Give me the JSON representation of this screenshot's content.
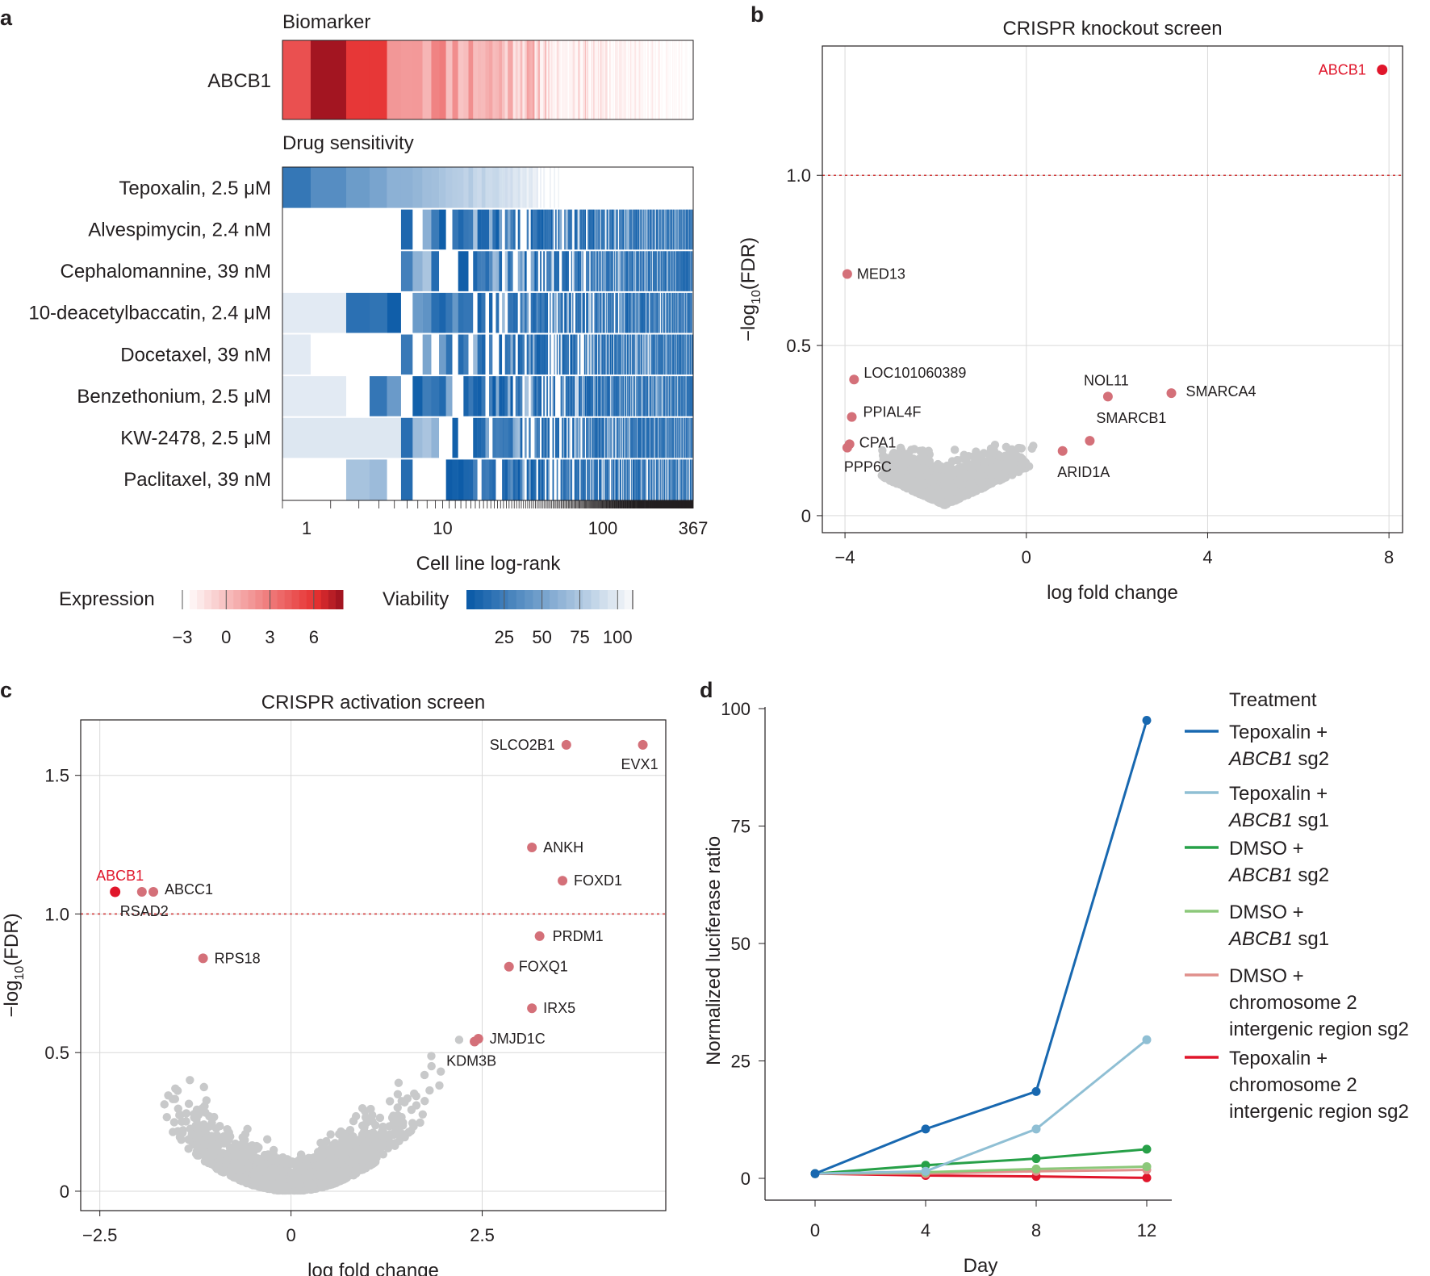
{
  "colors": {
    "red_highlight": "#e0162b",
    "pink_gene": "#d47079",
    "grey_point": "#c8c9ca",
    "grid": "#d9d9d9",
    "threshold": "#d03a3a",
    "blue": "#1868b0",
    "lightblue": "#8fbfd4",
    "green": "#27a048",
    "lightgreen": "#8cc87a",
    "salmon": "#e0908c",
    "red": "#e0162b"
  },
  "chart_data": [
    {
      "panel": "a",
      "type": "heatmap",
      "biomarker_title": "Biomarker",
      "biomarker_row": "ABCB1",
      "drug_title": "Drug sensitivity",
      "rows": [
        "Tepoxalin, 2.5 μM",
        "Alvespimycin, 2.4 nM",
        "Cephalomannine, 39 nM",
        "10-deacetylbaccatin, 2.4 μM",
        "Docetaxel, 39 nM",
        "Benzethonium, 2.5 μM",
        "KW-2478, 2.5 μM",
        "Paclitaxel, 39 nM"
      ],
      "x_ticks": [
        {
          "value": 1,
          "label": "1"
        },
        {
          "value": 10,
          "label": "10"
        },
        {
          "value": 100,
          "label": "100"
        },
        {
          "value": 367,
          "label": "367"
        }
      ],
      "x_scale": "log",
      "xlim": [
        1,
        367
      ],
      "xlabel": "Cell line log-rank",
      "expression_legend": {
        "title": "Expression",
        "ticks": [
          "−3",
          "0",
          "3",
          "6"
        ],
        "range": [
          -3,
          8
        ]
      },
      "viability_legend": {
        "title": "Viability",
        "ticks": [
          "25",
          "50",
          "75",
          "100"
        ],
        "range": [
          0,
          110
        ]
      }
    },
    {
      "panel": "b",
      "type": "scatter",
      "title": "CRISPR knockout screen",
      "xlabel": "log fold change",
      "ylabel": "−log10(FDR)",
      "xlim": [
        -4.5,
        8.3
      ],
      "ylim": [
        -0.05,
        1.38
      ],
      "x_ticks": [
        {
          "value": -4,
          "label": "−4"
        },
        {
          "value": 0,
          "label": "0"
        },
        {
          "value": 4,
          "label": "4"
        },
        {
          "value": 8,
          "label": "8"
        }
      ],
      "y_ticks": [
        {
          "value": 0,
          "label": "0"
        },
        {
          "value": 0.5,
          "label": "0.5"
        },
        {
          "value": 1.0,
          "label": "1.0"
        }
      ],
      "threshold": 1.0,
      "highlight": [
        {
          "gene": "ABCB1",
          "x": 7.85,
          "y": 1.31
        }
      ],
      "labeled": [
        {
          "gene": "MED13",
          "x": -3.95,
          "y": 0.71
        },
        {
          "gene": "LOC101060389",
          "x": -3.8,
          "y": 0.4
        },
        {
          "gene": "PPIAL4F",
          "x": -3.85,
          "y": 0.29
        },
        {
          "gene": "CPA1",
          "x": -3.9,
          "y": 0.21
        },
        {
          "gene": "PPP6C",
          "x": -3.95,
          "y": 0.2
        },
        {
          "gene": "NOL11",
          "x": 1.8,
          "y": 0.35
        },
        {
          "gene": "SMARCA4",
          "x": 3.2,
          "y": 0.36
        },
        {
          "gene": "SMARCB1",
          "x": 1.4,
          "y": 0.22
        },
        {
          "gene": "ARID1A",
          "x": 0.8,
          "y": 0.19
        }
      ],
      "background_points_note": "thousands of genes clustered near x 0 to -3, y 0 to 0.25"
    },
    {
      "panel": "c",
      "type": "scatter",
      "title": "CRISPR activation screen",
      "xlabel": "log fold change",
      "ylabel": "−log10(FDR)",
      "xlim": [
        -2.75,
        4.9
      ],
      "ylim": [
        -0.07,
        1.7
      ],
      "x_ticks": [
        {
          "value": -2.5,
          "label": "−2.5"
        },
        {
          "value": 0,
          "label": "0"
        },
        {
          "value": 2.5,
          "label": "2.5"
        }
      ],
      "y_ticks": [
        {
          "value": 0,
          "label": "0"
        },
        {
          "value": 0.5,
          "label": "0.5"
        },
        {
          "value": 1.0,
          "label": "1.0"
        },
        {
          "value": 1.5,
          "label": "1.5"
        }
      ],
      "threshold": 1.0,
      "highlight": [
        {
          "gene": "ABCB1",
          "x": -2.3,
          "y": 1.08
        }
      ],
      "labeled": [
        {
          "gene": "RSAD2",
          "x": -1.95,
          "y": 1.08
        },
        {
          "gene": "ABCC1",
          "x": -1.8,
          "y": 1.08
        },
        {
          "gene": "RPS18",
          "x": -1.15,
          "y": 0.84
        },
        {
          "gene": "SLCO2B1",
          "x": 3.6,
          "y": 1.61
        },
        {
          "gene": "EVX1",
          "x": 4.6,
          "y": 1.61
        },
        {
          "gene": "ANKH",
          "x": 3.15,
          "y": 1.24
        },
        {
          "gene": "FOXD1",
          "x": 3.55,
          "y": 1.12
        },
        {
          "gene": "PRDM1",
          "x": 3.25,
          "y": 0.92
        },
        {
          "gene": "FOXQ1",
          "x": 2.85,
          "y": 0.81
        },
        {
          "gene": "IRX5",
          "x": 3.15,
          "y": 0.66
        },
        {
          "gene": "JMJD1C",
          "x": 2.45,
          "y": 0.55
        },
        {
          "gene": "KDM3B",
          "x": 2.4,
          "y": 0.54
        }
      ]
    },
    {
      "panel": "d",
      "type": "line",
      "xlabel": "Day",
      "ylabel": "Normalized luciferase ratio",
      "x": [
        0,
        4,
        8,
        12
      ],
      "xlim": [
        -1,
        13
      ],
      "ylim": [
        -4,
        103
      ],
      "x_ticks": [
        0,
        4,
        8,
        12
      ],
      "y_ticks": [
        0,
        25,
        50,
        75,
        100
      ],
      "legend_title": "Treatment",
      "series": [
        {
          "key": "tep_sg2",
          "lines": [
            {
              "t": "Tepoxalin +"
            },
            {
              "t": "ABCB1",
              "i": true,
              "s": " sg2"
            }
          ],
          "color": "#1868b0",
          "values": [
            1,
            10.5,
            18.5,
            97.5
          ]
        },
        {
          "key": "tep_sg1",
          "lines": [
            {
              "t": "Tepoxalin +"
            },
            {
              "t": "ABCB1",
              "i": true,
              "s": " sg1"
            }
          ],
          "color": "#8fbfd4",
          "values": [
            1,
            1.5,
            10.5,
            29.5
          ]
        },
        {
          "key": "dmso_sg2",
          "lines": [
            {
              "t": "DMSO +"
            },
            {
              "t": "ABCB1",
              "i": true,
              "s": " sg2"
            }
          ],
          "color": "#27a048",
          "values": [
            1,
            2.8,
            4.2,
            6.2
          ]
        },
        {
          "key": "dmso_sg1",
          "lines": [
            {
              "t": "DMSO +"
            },
            {
              "t": "ABCB1",
              "i": true,
              "s": " sg1"
            }
          ],
          "color": "#8cc87a",
          "values": [
            1,
            1.3,
            2.0,
            2.5
          ]
        },
        {
          "key": "dmso_int",
          "lines": [
            {
              "t": "DMSO +"
            },
            {
              "t": "chromosome 2"
            },
            {
              "t": "intergenic region sg2"
            }
          ],
          "color": "#e0908c",
          "values": [
            1,
            1.0,
            1.5,
            1.8
          ]
        },
        {
          "key": "tep_int",
          "lines": [
            {
              "t": "Tepoxalin +"
            },
            {
              "t": "chromosome 2"
            },
            {
              "t": "intergenic region sg2"
            }
          ],
          "color": "#e0162b",
          "values": [
            1,
            0.6,
            0.4,
            0.1
          ]
        }
      ]
    }
  ]
}
